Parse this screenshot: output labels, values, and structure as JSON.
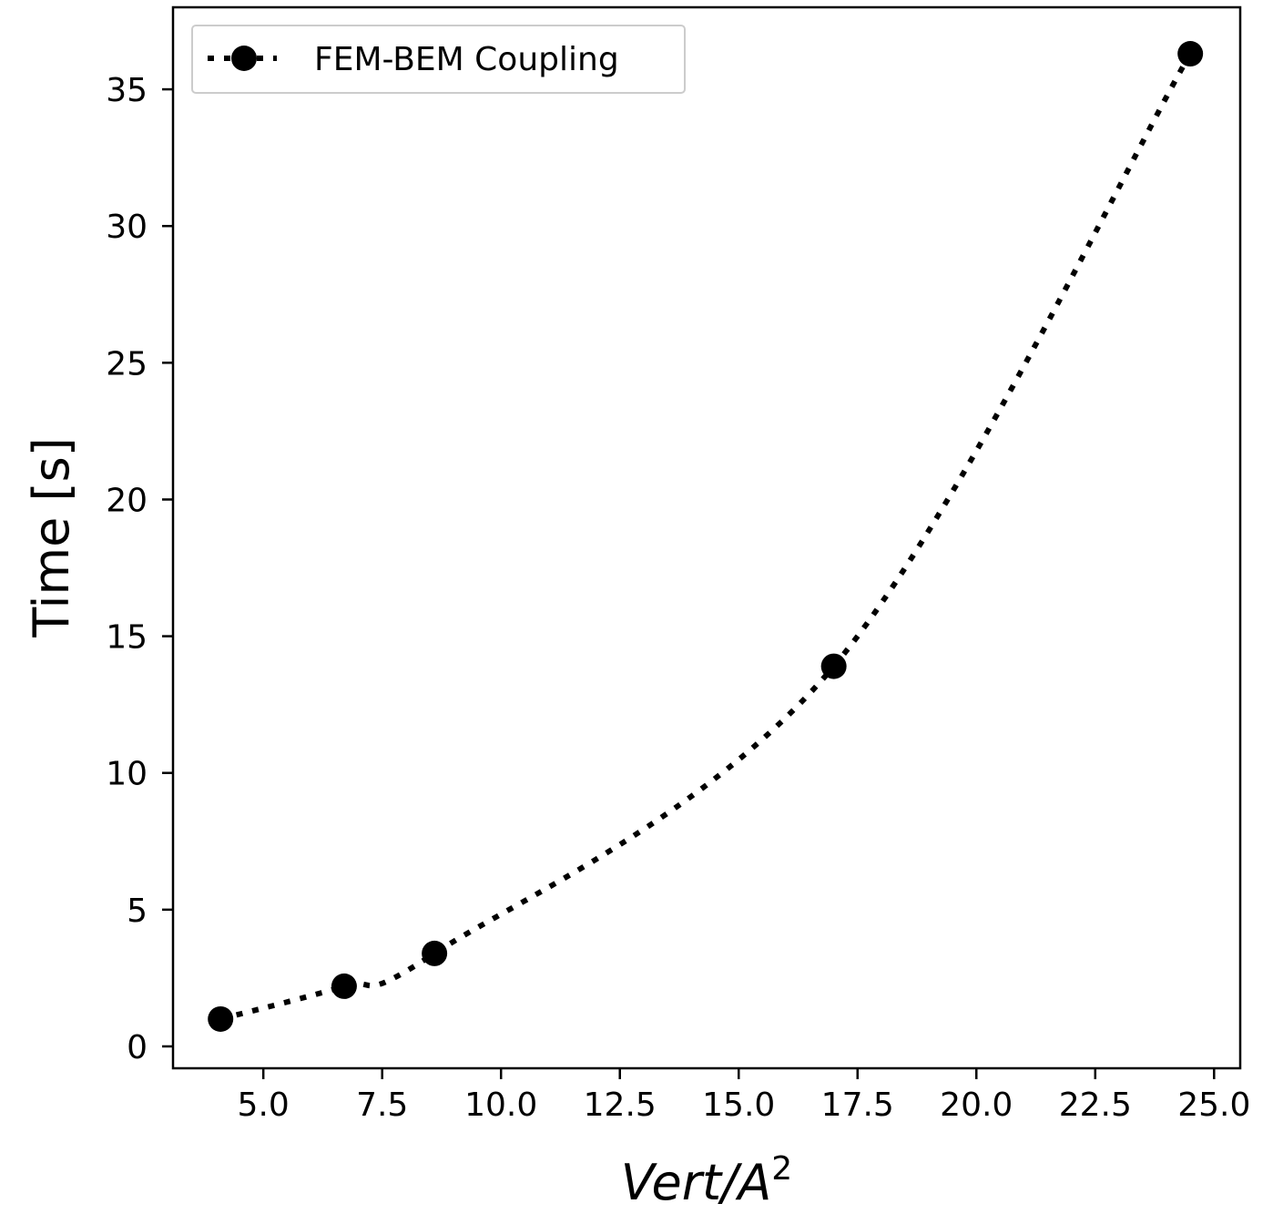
{
  "chart_data": {
    "type": "line",
    "xlabel_main": "Vert/A",
    "xlabel_sup": "2",
    "ylabel": "Time [s]",
    "x": [
      4.1,
      6.7,
      8.6,
      17.0,
      24.5
    ],
    "series": [
      {
        "name": "FEM-BEM Coupling",
        "values": [
          1.0,
          2.2,
          3.4,
          13.9,
          36.3
        ],
        "color": "#000000",
        "line_style": "dotted",
        "marker": "circle"
      }
    ],
    "xlim": [
      3.1,
      25.55
    ],
    "ylim": [
      -0.8,
      38.0
    ],
    "xticks": [
      5.0,
      7.5,
      10.0,
      12.5,
      15.0,
      17.5,
      20.0,
      22.5,
      25.0
    ],
    "xtick_labels": [
      "5.0",
      "7.5",
      "10.0",
      "12.5",
      "15.0",
      "17.5",
      "20.0",
      "22.5",
      "25.0"
    ],
    "yticks": [
      0,
      5,
      10,
      15,
      20,
      25,
      30,
      35
    ],
    "ytick_labels": [
      "0",
      "5",
      "10",
      "15",
      "20",
      "25",
      "30",
      "35"
    ],
    "grid": false,
    "legend_position": "upper left"
  }
}
